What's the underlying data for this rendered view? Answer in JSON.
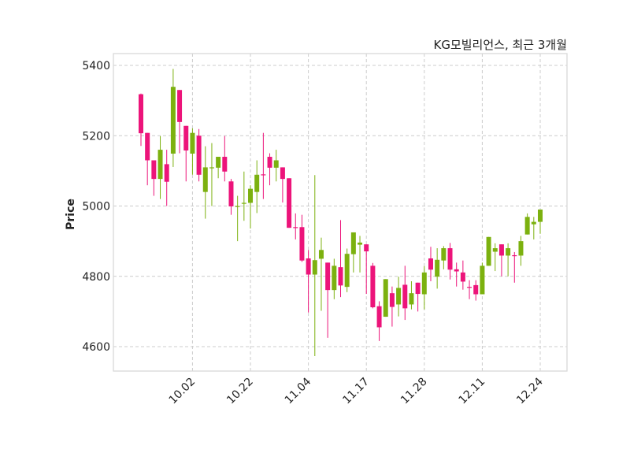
{
  "chart_data": {
    "type": "candlestick",
    "title": "KG모빌리언스, 최근 3개월",
    "xlabel": "",
    "ylabel": "Price",
    "ylim": [
      4530,
      5430
    ],
    "yticks": [
      4600,
      4800,
      5000,
      5200,
      5400
    ],
    "xtick_labels": [
      {
        "index": 8,
        "label": "10.02"
      },
      {
        "index": 17,
        "label": "10.22"
      },
      {
        "index": 26,
        "label": "11.04"
      },
      {
        "index": 35,
        "label": "11.17"
      },
      {
        "index": 44,
        "label": "11.28"
      },
      {
        "index": 53,
        "label": "12.11"
      },
      {
        "index": 62,
        "label": "12.24"
      }
    ],
    "grid": true,
    "colors": {
      "up": "#7cb10f",
      "down": "#ec147a",
      "grid": "#cccccc",
      "frame": "#d9d9d9"
    },
    "ohlc_fields": [
      "open",
      "high",
      "low",
      "close"
    ],
    "ohlc": [
      [
        5318,
        5320,
        5171,
        5207
      ],
      [
        5208,
        5208,
        5059,
        5130
      ],
      [
        5130,
        5130,
        5029,
        5077
      ],
      [
        5077,
        5199,
        5020,
        5160
      ],
      [
        5119,
        5160,
        5000,
        5069
      ],
      [
        5149,
        5390,
        5111,
        5339
      ],
      [
        5330,
        5330,
        5150,
        5239
      ],
      [
        5228,
        5228,
        5070,
        5158
      ],
      [
        5149,
        5221,
        5089,
        5208
      ],
      [
        5200,
        5219,
        5070,
        5089
      ],
      [
        5040,
        5170,
        4964,
        5110
      ],
      [
        5110,
        5179,
        5000,
        5110
      ],
      [
        5109,
        5140,
        5079,
        5140
      ],
      [
        5140,
        5199,
        5070,
        5098
      ],
      [
        5070,
        5077,
        4975,
        4999
      ],
      [
        5000,
        5029,
        4900,
        5000
      ],
      [
        5009,
        5098,
        4958,
        5009
      ],
      [
        5009,
        5059,
        4936,
        5049
      ],
      [
        5040,
        5130,
        4980,
        5089
      ],
      [
        5090,
        5208,
        5020,
        5089
      ],
      [
        5140,
        5150,
        5059,
        5109
      ],
      [
        5109,
        5160,
        5070,
        5130
      ],
      [
        5110,
        5110,
        5010,
        5077
      ],
      [
        5079,
        5079,
        4938,
        4938
      ],
      [
        4940,
        4979,
        4905,
        4939
      ],
      [
        4940,
        4975,
        4841,
        4845
      ],
      [
        4851,
        4875,
        4697,
        4805
      ],
      [
        4805,
        5088,
        4573,
        4846
      ],
      [
        4850,
        4910,
        4702,
        4875
      ],
      [
        4839,
        4839,
        4625,
        4761
      ],
      [
        4761,
        4850,
        4735,
        4830
      ],
      [
        4826,
        4960,
        4741,
        4774
      ],
      [
        4770,
        4879,
        4755,
        4864
      ],
      [
        4863,
        4925,
        4811,
        4925
      ],
      [
        4890,
        4915,
        4811,
        4896
      ],
      [
        4891,
        4891,
        4750,
        4871
      ],
      [
        4830,
        4838,
        4709,
        4712
      ],
      [
        4715,
        4729,
        4616,
        4655
      ],
      [
        4685,
        4792,
        4685,
        4792
      ],
      [
        4752,
        4771,
        4657,
        4713
      ],
      [
        4720,
        4799,
        4686,
        4767
      ],
      [
        4776,
        4830,
        4676,
        4709
      ],
      [
        4720,
        4786,
        4706,
        4752
      ],
      [
        4782,
        4782,
        4700,
        4750
      ],
      [
        4749,
        4829,
        4706,
        4811
      ],
      [
        4851,
        4884,
        4786,
        4819
      ],
      [
        4799,
        4880,
        4765,
        4847
      ],
      [
        4845,
        4886,
        4820,
        4880
      ],
      [
        4880,
        4895,
        4791,
        4819
      ],
      [
        4820,
        4839,
        4771,
        4814
      ],
      [
        4811,
        4845,
        4762,
        4785
      ],
      [
        4770,
        4789,
        4735,
        4769
      ],
      [
        4775,
        4789,
        4731,
        4749
      ],
      [
        4749,
        4839,
        4749,
        4830
      ],
      [
        4830,
        4912,
        4830,
        4912
      ],
      [
        4870,
        4894,
        4815,
        4880
      ],
      [
        4891,
        4891,
        4800,
        4859
      ],
      [
        4859,
        4894,
        4800,
        4880
      ],
      [
        4860,
        4869,
        4782,
        4859
      ],
      [
        4859,
        4915,
        4830,
        4900
      ],
      [
        4919,
        4979,
        4919,
        4969
      ],
      [
        4948,
        4969,
        4905,
        4955
      ],
      [
        4955,
        4990,
        4921,
        4990
      ]
    ]
  }
}
